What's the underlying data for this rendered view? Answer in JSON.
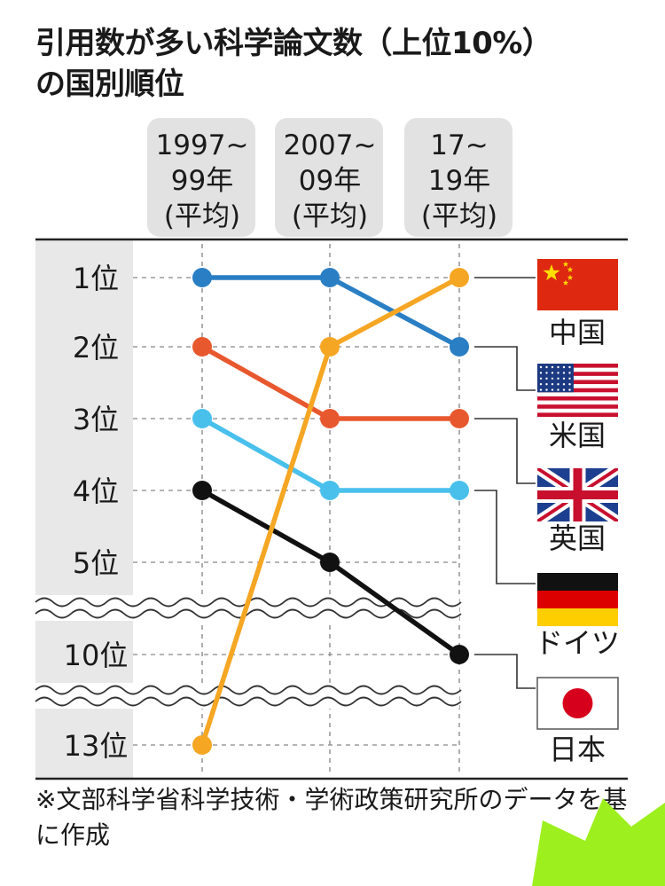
{
  "title_line1": "引用数が多い科学論文数（上位10%）",
  "title_line2": "の国別順位",
  "source_note": "※文部科学省科学技術・学術政策研究所のデータを基に作成",
  "chart_data": {
    "type": "line",
    "title": "引用数が多い科学論文数（上位10%）の国別順位",
    "period_labels": [
      [
        "1997~",
        "99年",
        "(平均)"
      ],
      [
        "2007~",
        "09年",
        "(平均)"
      ],
      [
        "17~",
        "19年",
        "(平均)"
      ]
    ],
    "rank_labels": [
      "1位",
      "2位",
      "3位",
      "4位",
      "5位",
      "10位",
      "13位"
    ],
    "rank_ticks": [
      1,
      2,
      3,
      4,
      5,
      10,
      13
    ],
    "axis_breaks": [
      "5-10",
      "10-13"
    ],
    "y_inverted": true,
    "series": [
      {
        "name": "中国",
        "values": [
          13,
          2,
          1
        ],
        "color": "#f5a623",
        "flag": "china-flag-icon"
      },
      {
        "name": "米国",
        "values": [
          1,
          1,
          2
        ],
        "color": "#2a7fc4",
        "flag": "usa-flag-icon"
      },
      {
        "name": "英国",
        "values": [
          2,
          3,
          3
        ],
        "color": "#e8582e",
        "flag": "uk-flag-icon"
      },
      {
        "name": "ドイツ",
        "values": [
          3,
          4,
          4
        ],
        "color": "#49c0ec",
        "flag": "germany-flag-icon"
      },
      {
        "name": "日本",
        "values": [
          4,
          5,
          10
        ],
        "color": "#111111",
        "flag": "japan-flag-icon"
      }
    ]
  }
}
